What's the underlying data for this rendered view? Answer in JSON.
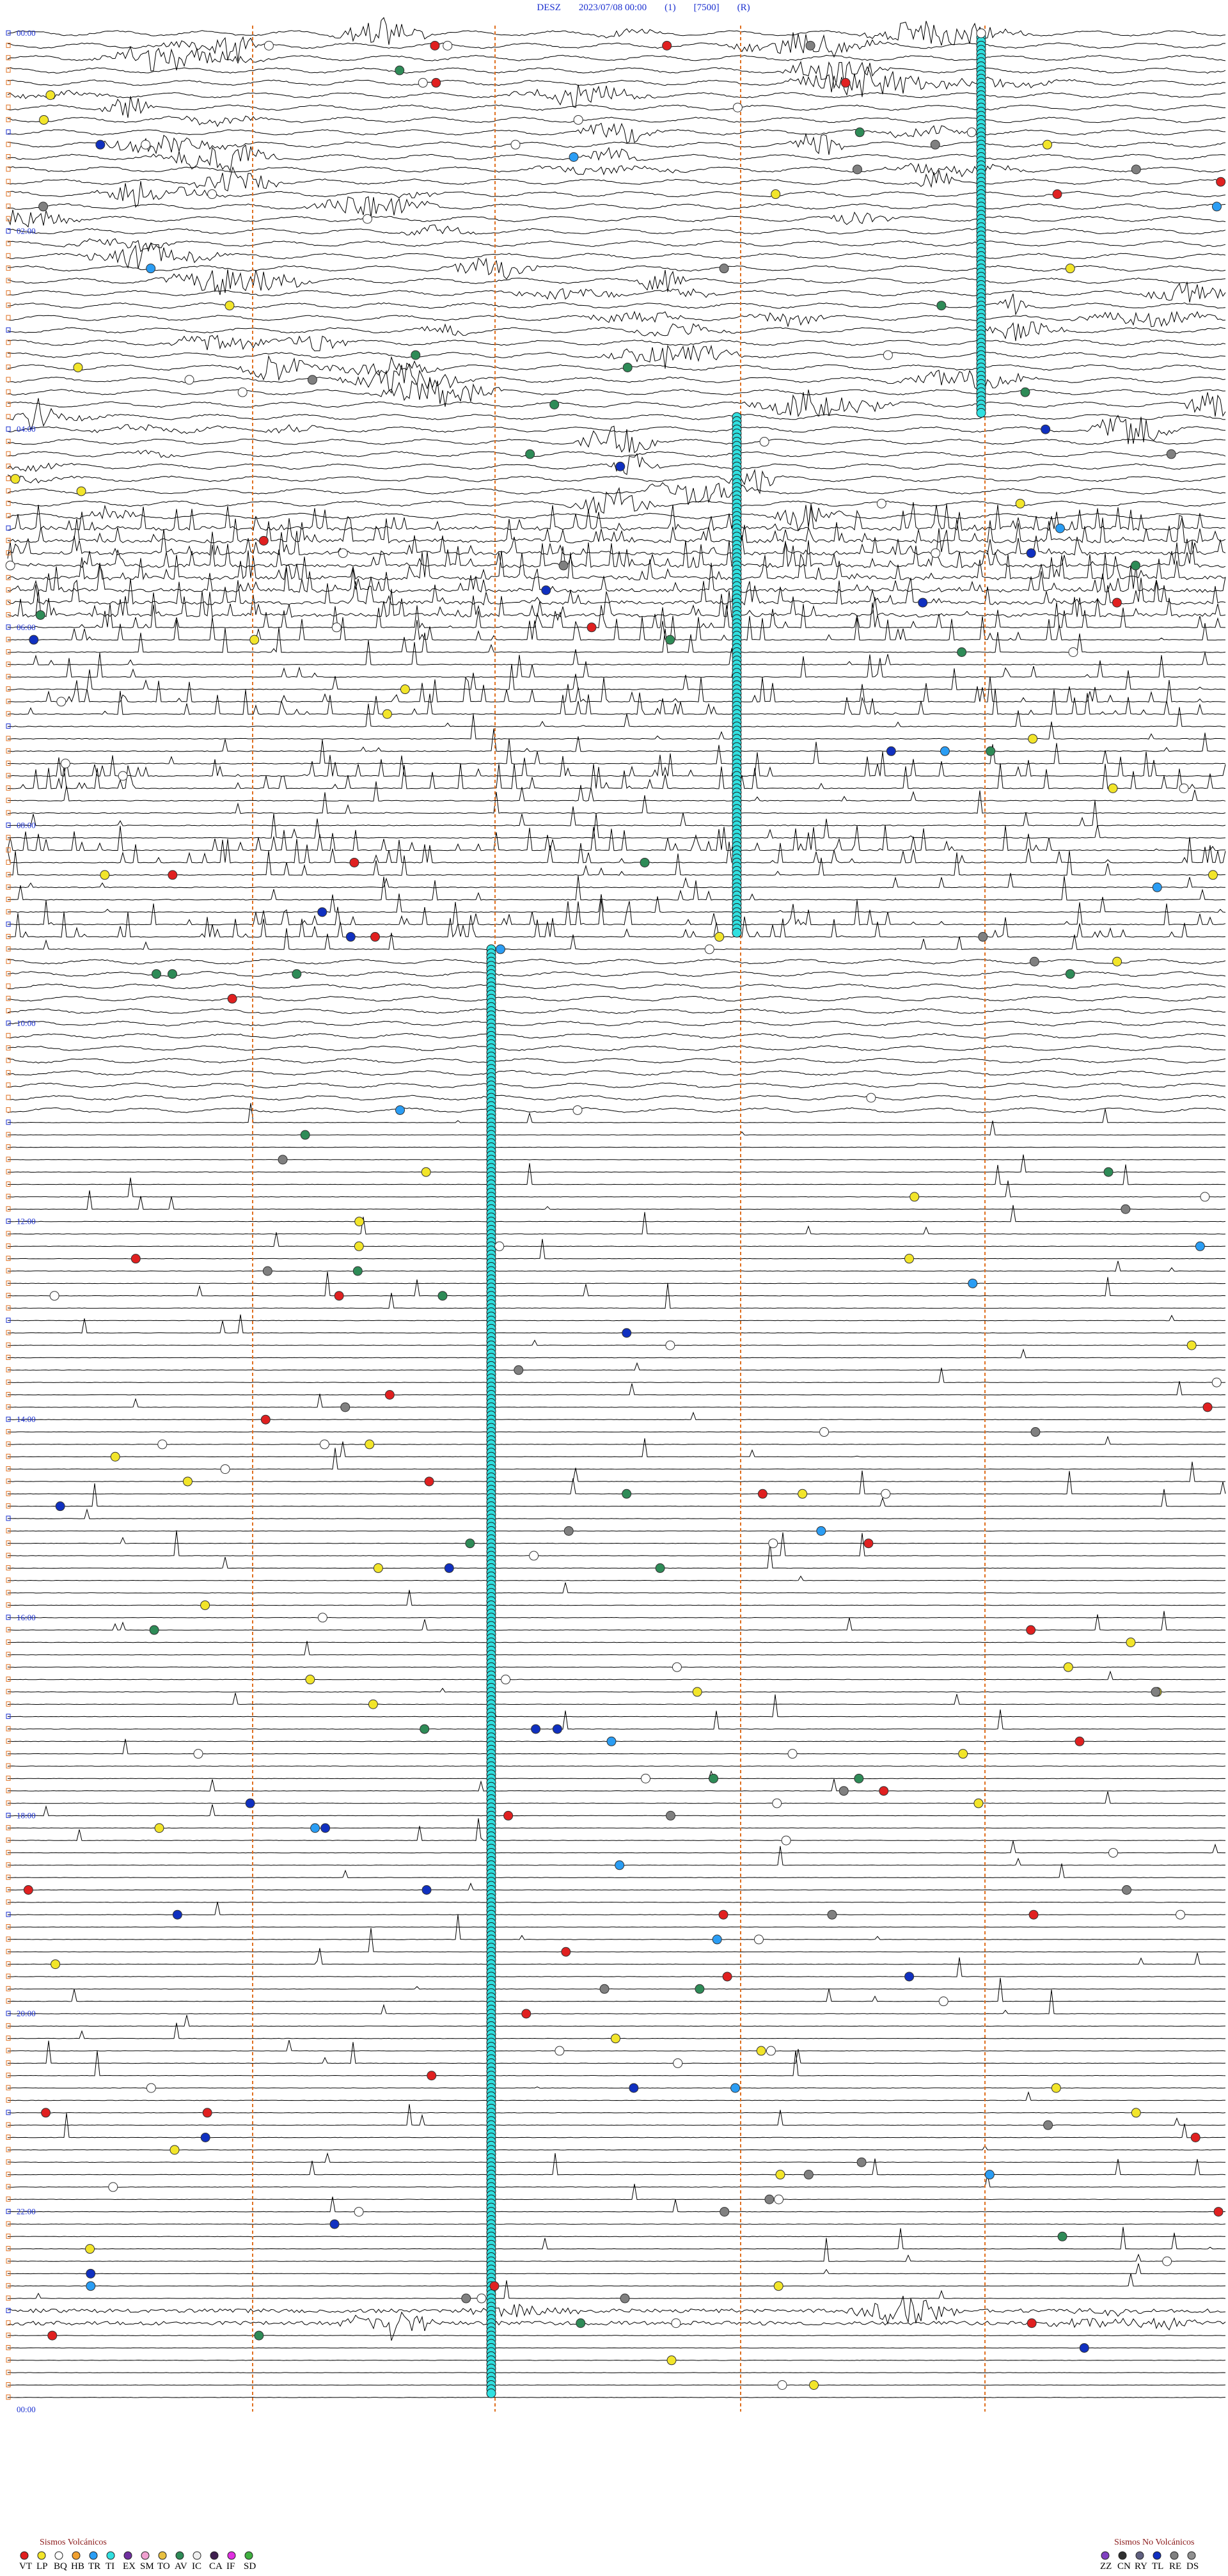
{
  "header": {
    "station": "DESZ",
    "datetime": "2023/07/08 00:00",
    "channel": "(1)",
    "scale": "[7500]",
    "mode": "(R)"
  },
  "hour_labels": [
    "00:00",
    "02:00",
    "04:00",
    "06:00",
    "08:00",
    "10:00",
    "12:00",
    "14:00",
    "16:00",
    "18:00",
    "20:00",
    "22:00",
    "00:00"
  ],
  "legend_volcanic": {
    "title": "Sismos Volcánicos",
    "items": [
      {
        "code": "VT",
        "color": "#e02020"
      },
      {
        "code": "LP",
        "color": "#f2e52a"
      },
      {
        "code": "BQ",
        "color": "#ffffff"
      },
      {
        "code": "HB",
        "color": "#f0a030"
      },
      {
        "code": "TR",
        "color": "#2a9df4"
      },
      {
        "code": "TI",
        "color": "#30e0e0"
      },
      {
        "code": "EX",
        "color": "#7030a0"
      },
      {
        "code": "SM",
        "color": "#f0a0d0"
      },
      {
        "code": "TO",
        "color": "#e8c040"
      },
      {
        "code": "AV",
        "color": "#2e8b57"
      },
      {
        "code": "IC",
        "color": "#f0f0f0"
      },
      {
        "code": "CA",
        "color": "#402050"
      },
      {
        "code": "IF",
        "color": "#e030e0"
      },
      {
        "code": "SD",
        "color": "#40b040"
      }
    ]
  },
  "legend_non_volcanic": {
    "title": "Sismos No Volcánicos",
    "items": [
      {
        "code": "ZZ",
        "color": "#8040c0"
      },
      {
        "code": "CN",
        "color": "#303030"
      },
      {
        "code": "RY",
        "color": "#606080"
      },
      {
        "code": "TL",
        "color": "#1030c0"
      },
      {
        "code": "RE",
        "color": "#808080"
      },
      {
        "code": "DS",
        "color": "#909090"
      }
    ]
  }
}
